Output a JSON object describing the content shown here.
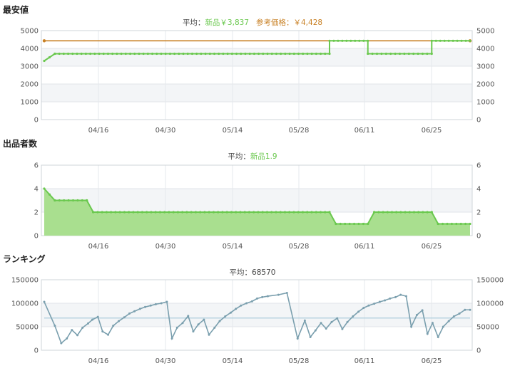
{
  "x_ticks": [
    "04/16",
    "04/30",
    "05/14",
    "05/28",
    "06/11",
    "06/25"
  ],
  "colors": {
    "new": "#6ac84e",
    "new_fill": "#a9df8f",
    "reference": "#c88024",
    "ranking": "#7a9fae",
    "ranking_avg": "#b8d3e0",
    "avg_label": "#444444"
  },
  "chart_data": [
    {
      "type": "line",
      "title": "最安値",
      "average": {
        "label": "平均：",
        "items": [
          {
            "text": "新品￥3,837",
            "color": "new"
          },
          {
            "text": "参考価格：￥4,428",
            "color": "reference"
          }
        ]
      },
      "y_ticks": [
        "0",
        "1000",
        "2000",
        "3000",
        "4000",
        "5000"
      ],
      "ylim": [
        0,
        5000
      ],
      "x_range": [
        0,
        100
      ],
      "series": [
        {
          "name": "新品",
          "color": "new",
          "step": true,
          "markers": true,
          "points": [
            [
              0,
              3300
            ],
            [
              2.5,
              3700
            ],
            [
              91,
              3700
            ],
            [
              91.8,
              3700
            ],
            [
              100,
              3700
            ]
          ],
          "values_segments": [
            {
              "x0": 0,
              "x1": 2.5,
              "y": 3300,
              "y_end": 3700
            },
            {
              "x0": 2.5,
              "x1": 67,
              "y": 3700
            },
            {
              "x0": 67,
              "x1": 76,
              "y": 4428
            },
            {
              "x0": 76,
              "x1": 91,
              "y": 3700
            },
            {
              "x0": 91,
              "x1": 100,
              "y": 4428
            }
          ]
        },
        {
          "name": "参考価格",
          "color": "reference",
          "flat": 4428
        }
      ]
    },
    {
      "type": "area",
      "title": "出品者数",
      "average": {
        "label": "平均：",
        "items": [
          {
            "text": "新品1.9",
            "color": "new"
          }
        ]
      },
      "y_ticks": [
        "0",
        "2",
        "4",
        "6"
      ],
      "ylim": [
        0,
        6
      ],
      "x_range": [
        0,
        100
      ],
      "segments": [
        {
          "x0": 0,
          "x1": 2.5,
          "y": 4,
          "y_end": 3
        },
        {
          "x0": 2.5,
          "x1": 10,
          "y": 3
        },
        {
          "x0": 10,
          "x1": 11.5,
          "y": 3,
          "y_end": 2
        },
        {
          "x0": 11.5,
          "x1": 67,
          "y": 2
        },
        {
          "x0": 67,
          "x1": 68.5,
          "y": 2,
          "y_end": 1
        },
        {
          "x0": 68.5,
          "x1": 76,
          "y": 1
        },
        {
          "x0": 76,
          "x1": 77.5,
          "y": 1,
          "y_end": 2
        },
        {
          "x0": 77.5,
          "x1": 91,
          "y": 2
        },
        {
          "x0": 91,
          "x1": 92.5,
          "y": 2,
          "y_end": 1
        },
        {
          "x0": 92.5,
          "x1": 100,
          "y": 1
        }
      ]
    },
    {
      "type": "line",
      "title": "ランキング",
      "average": {
        "label": "平均：68570",
        "items": []
      },
      "y_ticks": [
        "0",
        "50000",
        "100000",
        "150000"
      ],
      "ylim": [
        0,
        150000
      ],
      "x_range": [
        0,
        100
      ],
      "average_line": 68570,
      "series": [
        {
          "name": "ranking",
          "color": "ranking",
          "x": [
            0,
            2.5,
            4,
            5.3,
            6.5,
            7.8,
            9,
            10.3,
            11.3,
            12.6,
            13.7,
            15,
            16.2,
            17.5,
            18.8,
            20,
            21.2,
            22.5,
            23.7,
            25,
            26.2,
            27.5,
            28.8,
            30,
            31.2,
            32.5,
            33.8,
            35,
            36.2,
            37.5,
            38.7,
            40,
            41.2,
            42.5,
            43.8,
            45,
            46.2,
            47.5,
            48.8,
            50,
            51.2,
            52.5,
            55,
            57,
            59.5,
            61.2,
            62.5,
            63.7,
            65,
            66.2,
            67.5,
            68.8,
            70,
            71.2,
            72.5,
            73.8,
            75,
            76.2,
            77.5,
            78.8,
            80,
            81.2,
            82.5,
            83.7,
            85,
            86.2,
            87.5,
            88.8,
            90,
            91.2,
            92.5,
            93.7,
            95,
            96.2,
            97.5,
            98.8,
            100
          ],
          "y": [
            103000,
            52000,
            15000,
            25000,
            43000,
            32000,
            48000,
            57000,
            65000,
            71000,
            40000,
            33000,
            52000,
            62000,
            70000,
            78000,
            83000,
            88000,
            92000,
            95000,
            98000,
            100000,
            103000,
            25000,
            48000,
            58000,
            73000,
            40000,
            55000,
            65000,
            33000,
            48000,
            62000,
            72000,
            80000,
            88000,
            95000,
            100000,
            104000,
            110000,
            113000,
            115000,
            118000,
            122000,
            25000,
            63000,
            28000,
            42000,
            58000,
            46000,
            60000,
            68000,
            45000,
            60000,
            72000,
            82000,
            90000,
            95000,
            99000,
            103000,
            106000,
            110000,
            113000,
            118000,
            115000,
            50000,
            75000,
            85000,
            35000,
            58000,
            28000,
            50000,
            62000,
            72000,
            78000,
            86000,
            86000
          ]
        }
      ]
    }
  ]
}
